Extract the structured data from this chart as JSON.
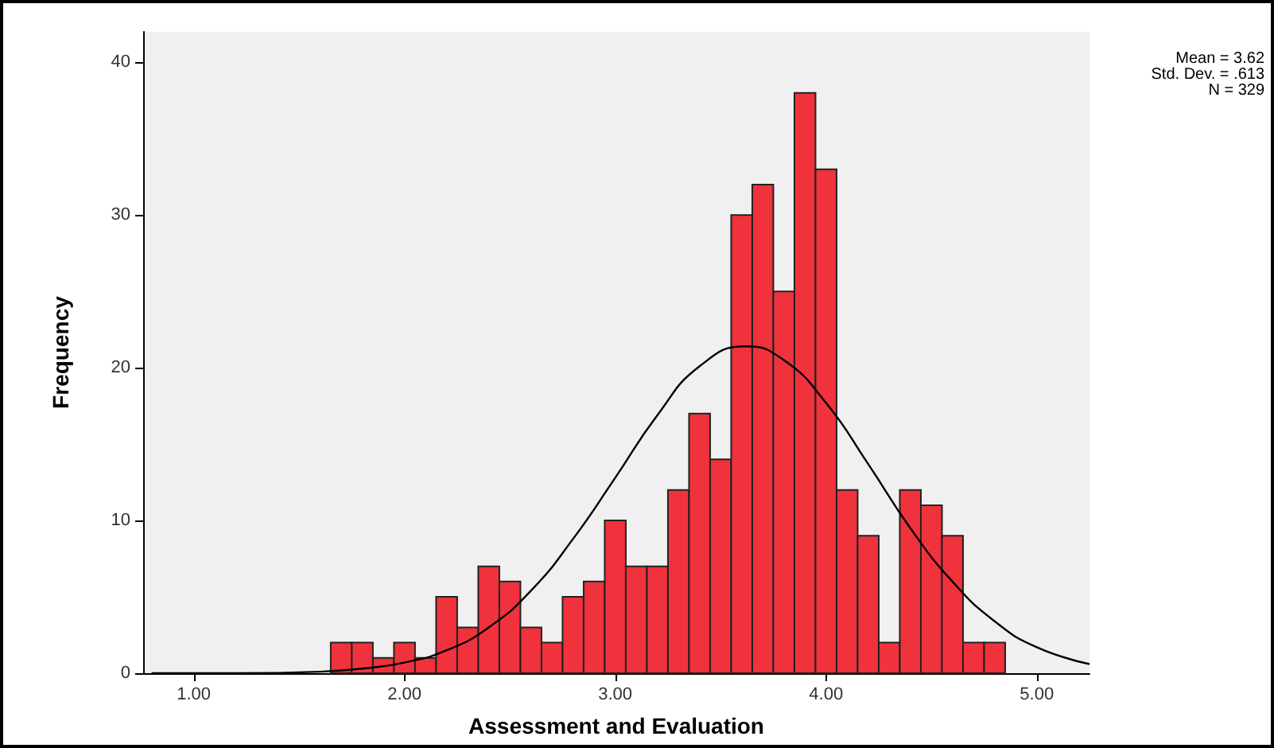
{
  "chart_data": {
    "type": "histogram",
    "xlabel": "Assessment and Evaluation",
    "ylabel": "Frequency",
    "bins": [
      1.65,
      1.75,
      1.85,
      1.95,
      2.05,
      2.15,
      2.25,
      2.35,
      2.45,
      2.55,
      2.65,
      2.75,
      2.85,
      2.95,
      3.05,
      3.15,
      3.25,
      3.35,
      3.45,
      3.55,
      3.65,
      3.75,
      3.85,
      3.95,
      4.05,
      4.15,
      4.25,
      4.35,
      4.45,
      4.55,
      4.65,
      4.75,
      4.85
    ],
    "values": [
      2,
      2,
      1,
      2,
      1,
      5,
      3,
      7,
      6,
      3,
      2,
      5,
      6,
      10,
      7,
      7,
      12,
      17,
      14,
      30,
      32,
      25,
      38,
      33,
      12,
      9,
      2,
      12,
      11,
      9,
      2,
      2
    ],
    "color": "#f0323c",
    "series": [
      {
        "type": "line",
        "color": "#000000",
        "x": [
          0.8,
          1.2,
          1.6,
          1.8,
          2.0,
          2.2,
          2.4,
          2.6,
          2.8,
          3.0,
          3.2,
          3.4,
          3.62,
          3.8,
          4.0,
          4.2,
          4.4,
          4.6,
          4.8,
          5.0,
          5.25
        ],
        "values": [
          0,
          0,
          0.1,
          0.3,
          0.7,
          1.5,
          3.0,
          5.4,
          8.8,
          12.8,
          16.9,
          20.1,
          21.4,
          20.5,
          17.7,
          13.7,
          9.5,
          6.0,
          3.4,
          1.7,
          0.6
        ]
      }
    ],
    "xlim": [
      0.76,
      5.25
    ],
    "xticks": [
      {
        "value": 1,
        "label": "1.00"
      },
      {
        "value": 2,
        "label": "2.00"
      },
      {
        "value": 3,
        "label": "3.00"
      },
      {
        "value": 4,
        "label": "4.00"
      },
      {
        "value": 5,
        "label": "5.00"
      }
    ],
    "ylim": [
      0,
      42
    ],
    "yticks": [
      0,
      10,
      20,
      30,
      40
    ],
    "annotations": [
      "Mean = 3.62",
      "Std. Dev. = .613",
      "N = 329"
    ],
    "grid": false,
    "marker": "none",
    "line_style": "solid"
  }
}
